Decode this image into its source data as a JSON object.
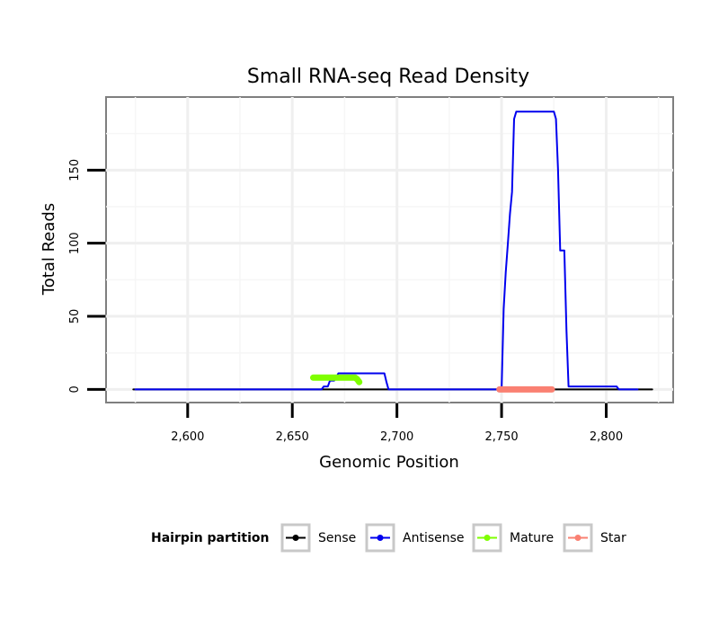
{
  "chart_data": {
    "type": "line",
    "title": "Small RNA-seq Read Density",
    "xlabel": "Genomic Position",
    "ylabel": "Total Reads",
    "xlim": [
      2561,
      2832
    ],
    "ylim": [
      -9,
      200
    ],
    "x_ticks": [
      2600,
      2650,
      2700,
      2750,
      2800
    ],
    "x_tick_labels": [
      "2,600",
      "2,650",
      "2,700",
      "2,750",
      "2,800"
    ],
    "y_ticks": [
      0,
      50,
      100,
      150
    ],
    "y_tick_labels": [
      "0",
      "50",
      "100",
      "150"
    ],
    "grid": true,
    "legend": {
      "title": "Hairpin partition",
      "position": "bottom",
      "entries": [
        "Sense",
        "Antisense",
        "Mature",
        "Star"
      ]
    },
    "series": [
      {
        "name": "Sense",
        "color": "#000000",
        "x": [
          2574,
          2750,
          2760,
          2800,
          2805,
          2822
        ],
        "y": [
          0,
          0,
          0,
          0,
          0,
          0
        ]
      },
      {
        "name": "Antisense",
        "color": "#0000ee",
        "x": [
          2575,
          2660,
          2661,
          2664,
          2665,
          2667,
          2668,
          2670,
          2672,
          2694,
          2695,
          2696,
          2700,
          2748,
          2749,
          2750,
          2751,
          2752,
          2753,
          2754,
          2755,
          2756,
          2757,
          2758,
          2760,
          2770,
          2775,
          2776,
          2777,
          2778,
          2779,
          2780,
          2781,
          2782,
          2785,
          2800,
          2805,
          2806,
          2815
        ],
        "y": [
          0,
          0,
          0,
          0,
          2,
          2,
          6,
          6,
          11,
          11,
          5,
          0,
          0,
          0,
          0,
          0,
          55,
          80,
          100,
          120,
          135,
          185,
          190,
          190,
          190,
          190,
          190,
          185,
          150,
          95,
          95,
          95,
          40,
          2,
          2,
          2,
          2,
          0,
          0
        ]
      },
      {
        "name": "Mature",
        "color": "#7fff00",
        "x": [
          2660,
          2665,
          2670,
          2675,
          2680,
          2681,
          2682
        ],
        "y": [
          8,
          8,
          8,
          8,
          8,
          7,
          5
        ]
      },
      {
        "name": "Star",
        "color": "#fa8072",
        "x": [
          2749,
          2755,
          2760,
          2765,
          2770,
          2774
        ],
        "y": [
          0,
          0,
          0,
          0,
          0,
          0
        ]
      }
    ]
  }
}
